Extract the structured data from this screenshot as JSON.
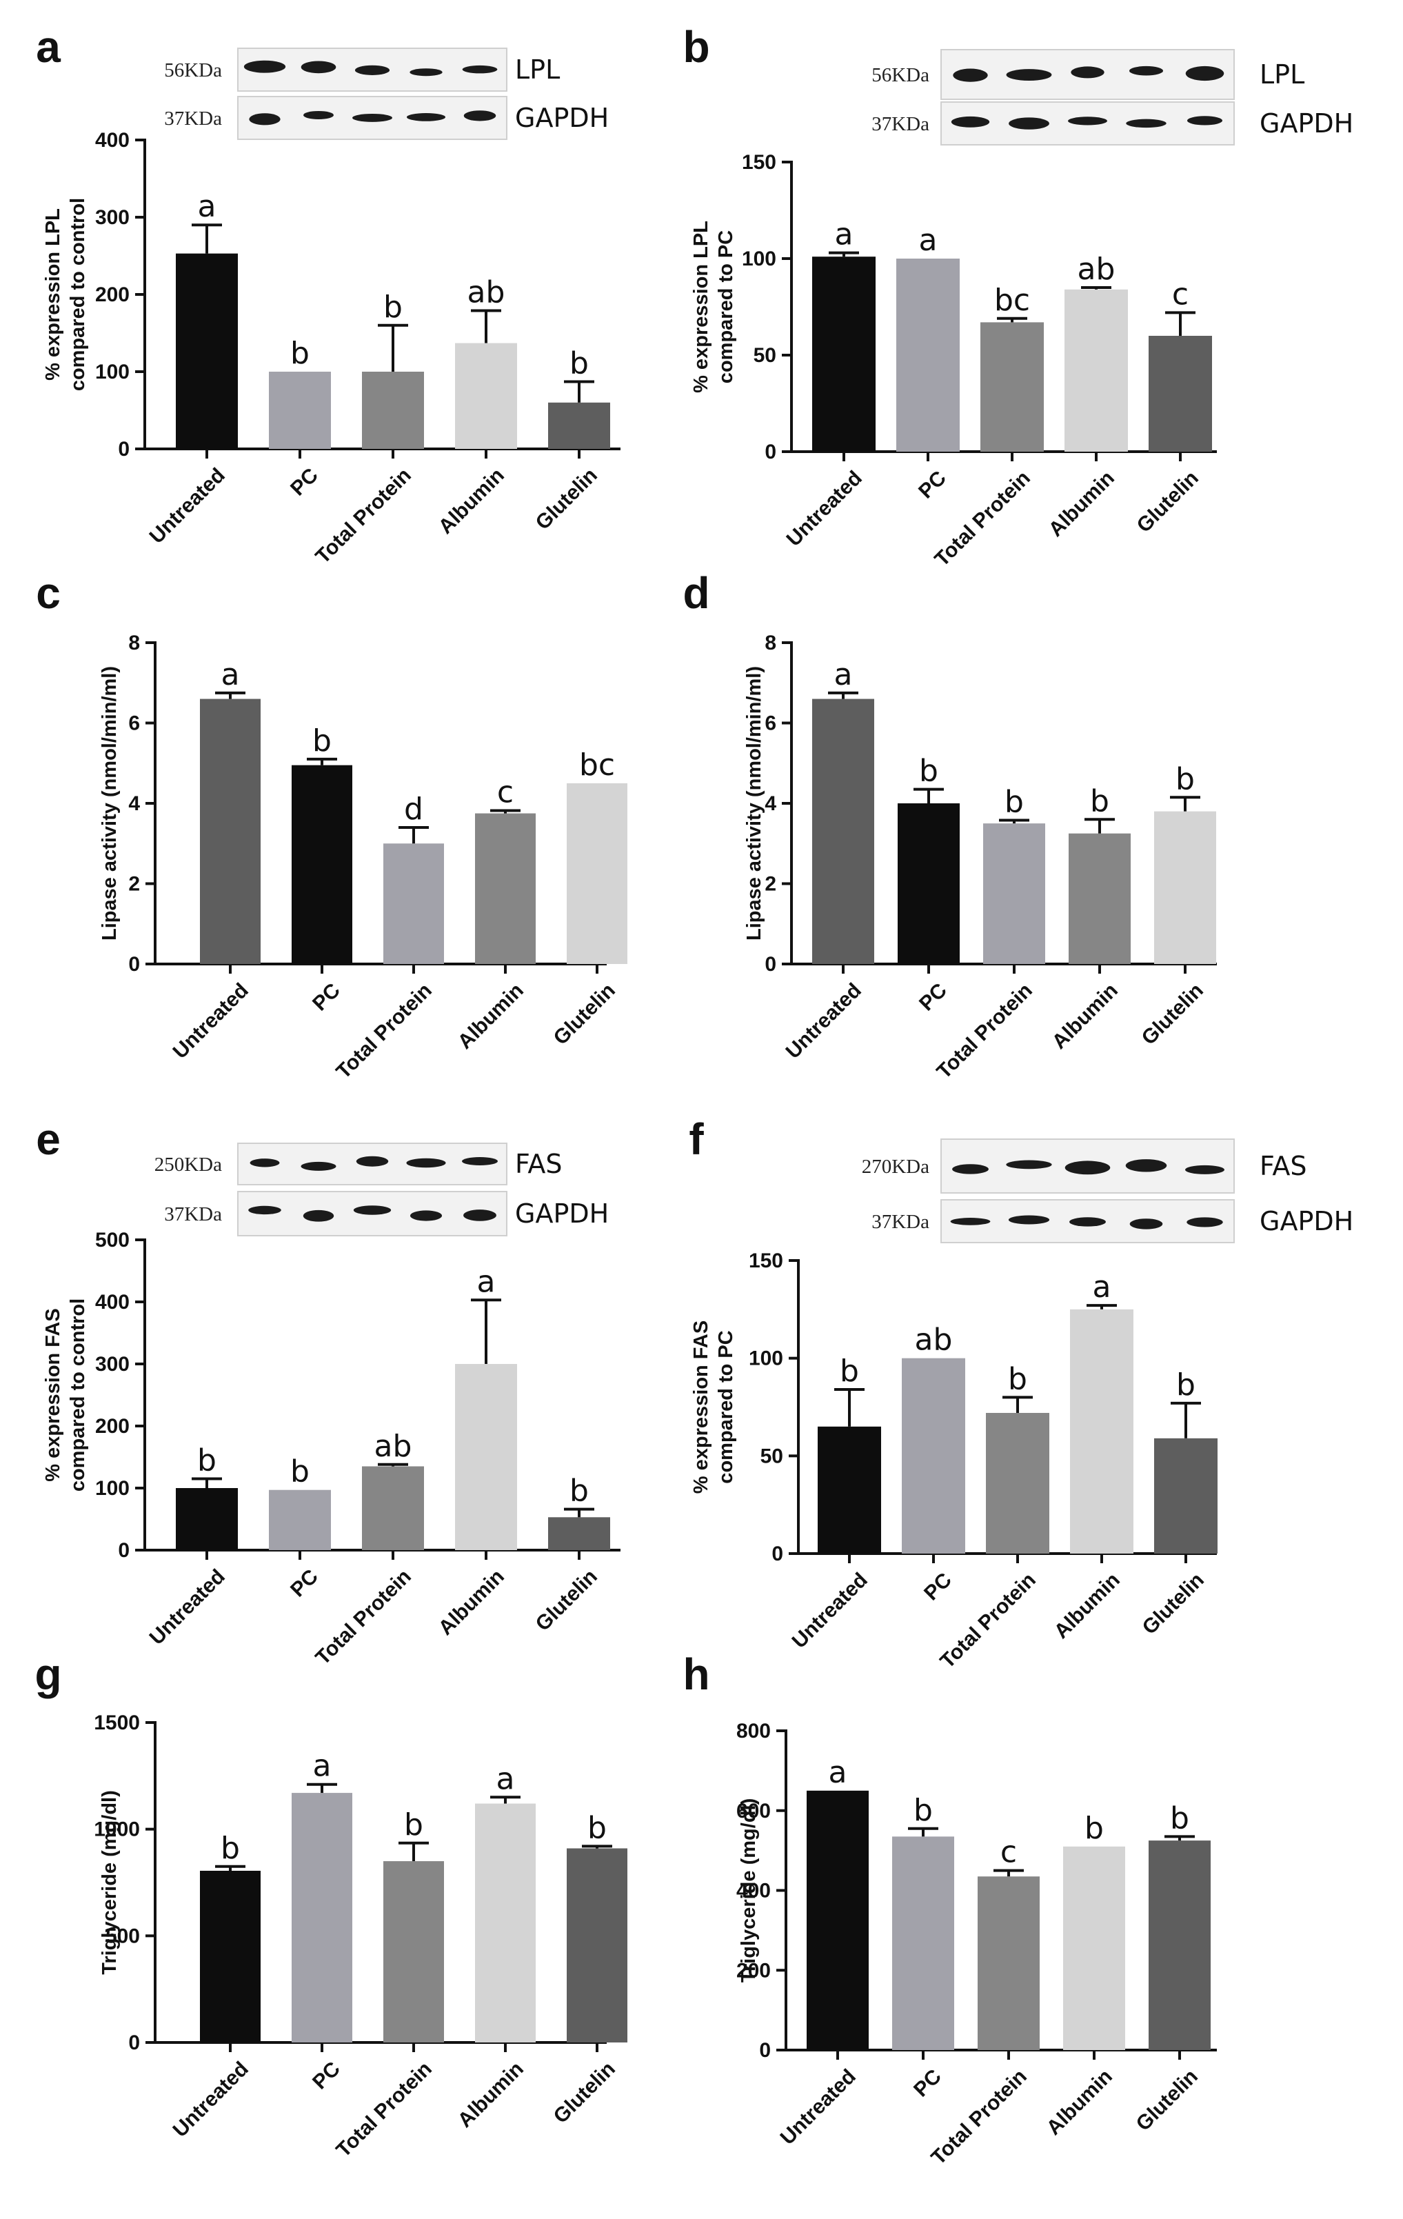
{
  "chart_data": [
    {
      "panel": "a",
      "type": "bar",
      "title": "",
      "xlabel": "",
      "ylabel": "% expression LPL compared to control",
      "categories": [
        "Untreated",
        "PC",
        "Total Protein",
        "Albumin",
        "Glutelin"
      ],
      "values": [
        253,
        100,
        100,
        137,
        60
      ],
      "errors": [
        37,
        0,
        60,
        42,
        27
      ],
      "significance": [
        "a",
        "b",
        "b",
        "ab",
        "b"
      ],
      "bar_colors": [
        "#0d0d0d",
        "#a2a2aa",
        "#868686",
        "#d4d4d4",
        "#5e5e5e"
      ],
      "ylim": [
        0,
        400
      ],
      "yticks": [
        "0",
        "100",
        "200",
        "300",
        "400"
      ],
      "blot": {
        "rows": [
          {
            "kda": "56KDa",
            "protein": "LPL"
          },
          {
            "kda": "37KDa",
            "protein": "GAPDH"
          }
        ]
      }
    },
    {
      "panel": "b",
      "type": "bar",
      "title": "",
      "xlabel": "",
      "ylabel": "% expression LPL compared to PC",
      "categories": [
        "Untreated",
        "PC",
        "Total Protein",
        "Albumin",
        "Glutelin"
      ],
      "values": [
        101,
        100,
        67,
        84,
        60
      ],
      "errors": [
        2,
        0,
        2,
        1,
        12
      ],
      "significance": [
        "a",
        "a",
        "bc",
        "ab",
        "c"
      ],
      "bar_colors": [
        "#0d0d0d",
        "#a2a2aa",
        "#868686",
        "#d4d4d4",
        "#5e5e5e"
      ],
      "ylim": [
        0,
        150
      ],
      "yticks": [
        "0",
        "50",
        "100",
        "150"
      ],
      "blot": {
        "rows": [
          {
            "kda": "56KDa",
            "protein": "LPL"
          },
          {
            "kda": "37KDa",
            "protein": "GAPDH"
          }
        ]
      }
    },
    {
      "panel": "c",
      "type": "bar",
      "title": "",
      "xlabel": "",
      "ylabel": "Lipase activity (nmol/min/ml)",
      "categories": [
        "Untreated",
        "PC",
        "Total Protein",
        "Albumin",
        "Glutelin"
      ],
      "values": [
        6.6,
        4.95,
        3.0,
        3.75,
        4.5
      ],
      "errors": [
        0.15,
        0.15,
        0.4,
        0.07,
        0
      ],
      "significance": [
        "a",
        "b",
        "d",
        "c",
        "bc"
      ],
      "bar_colors": [
        "#5e5e5e",
        "#0d0d0d",
        "#a2a2aa",
        "#868686",
        "#d4d4d4"
      ],
      "ylim": [
        0,
        8
      ],
      "yticks": [
        "0",
        "2",
        "4",
        "6",
        "8"
      ]
    },
    {
      "panel": "d",
      "type": "bar",
      "title": "",
      "xlabel": "",
      "ylabel": "Lipase activity (nmol/min/ml)",
      "categories": [
        "Untreated",
        "PC",
        "Total Protein",
        "Albumin",
        "Glutelin"
      ],
      "values": [
        6.6,
        4.0,
        3.5,
        3.25,
        3.8
      ],
      "errors": [
        0.15,
        0.35,
        0.08,
        0.35,
        0.35
      ],
      "significance": [
        "a",
        "b",
        "b",
        "b",
        "b"
      ],
      "bar_colors": [
        "#5e5e5e",
        "#0d0d0d",
        "#a2a2aa",
        "#868686",
        "#d4d4d4"
      ],
      "ylim": [
        0,
        8
      ],
      "yticks": [
        "0",
        "2",
        "4",
        "6",
        "8"
      ]
    },
    {
      "panel": "e",
      "type": "bar",
      "title": "",
      "xlabel": "",
      "ylabel": "% expression FAS compared to control",
      "categories": [
        "Untreated",
        "PC",
        "Total Protein",
        "Albumin",
        "Glutelin"
      ],
      "values": [
        100,
        97,
        135,
        300,
        53
      ],
      "errors": [
        15,
        0,
        3,
        103,
        13
      ],
      "significance": [
        "b",
        "b",
        "ab",
        "a",
        "b"
      ],
      "bar_colors": [
        "#0d0d0d",
        "#a2a2aa",
        "#868686",
        "#d4d4d4",
        "#5e5e5e"
      ],
      "ylim": [
        0,
        500
      ],
      "yticks": [
        "0",
        "100",
        "200",
        "300",
        "400",
        "500"
      ],
      "blot": {
        "rows": [
          {
            "kda": "250KDa",
            "protein": "FAS"
          },
          {
            "kda": "37KDa",
            "protein": "GAPDH"
          }
        ]
      }
    },
    {
      "panel": "f",
      "type": "bar",
      "title": "",
      "xlabel": "",
      "ylabel": "% expression FAS compared to PC",
      "categories": [
        "Untreated",
        "PC",
        "Total Protein",
        "Albumin",
        "Glutelin"
      ],
      "values": [
        65,
        100,
        72,
        125,
        59
      ],
      "errors": [
        19,
        0,
        8,
        2,
        18
      ],
      "significance": [
        "b",
        "ab",
        "b",
        "a",
        "b"
      ],
      "bar_colors": [
        "#0d0d0d",
        "#a2a2aa",
        "#868686",
        "#d4d4d4",
        "#5e5e5e"
      ],
      "ylim": [
        0,
        150
      ],
      "yticks": [
        "0",
        "50",
        "100",
        "150"
      ],
      "blot": {
        "rows": [
          {
            "kda": "270KDa",
            "protein": "FAS"
          },
          {
            "kda": "37KDa",
            "protein": "GAPDH"
          }
        ]
      }
    },
    {
      "panel": "g",
      "type": "bar",
      "title": "",
      "xlabel": "",
      "ylabel": "Triglyceride (mg/dl)",
      "categories": [
        "Untreated",
        "PC",
        "Total Protein",
        "Albumin",
        "Glutelin"
      ],
      "values": [
        805,
        1170,
        850,
        1120,
        910
      ],
      "errors": [
        20,
        40,
        85,
        30,
        10
      ],
      "significance": [
        "b",
        "a",
        "b",
        "a",
        "b"
      ],
      "bar_colors": [
        "#0d0d0d",
        "#a2a2aa",
        "#868686",
        "#d4d4d4",
        "#5e5e5e"
      ],
      "ylim": [
        0,
        1500
      ],
      "yticks": [
        "0",
        "500",
        "1000",
        "1500"
      ]
    },
    {
      "panel": "h",
      "type": "bar",
      "title": "",
      "xlabel": "",
      "ylabel": "Triglyceride (mg/dl)",
      "categories": [
        "Untreated",
        "PC",
        "Total Protein",
        "Albumin",
        "Glutelin"
      ],
      "values": [
        650,
        535,
        435,
        510,
        525
      ],
      "errors": [
        0,
        20,
        15,
        0,
        10
      ],
      "significance": [
        "a",
        "b",
        "c",
        "b",
        "b"
      ],
      "bar_colors": [
        "#0d0d0d",
        "#a2a2aa",
        "#868686",
        "#d4d4d4",
        "#5e5e5e"
      ],
      "ylim": [
        0,
        800
      ],
      "yticks": [
        "0",
        "200",
        "400",
        "600",
        "800"
      ]
    }
  ]
}
